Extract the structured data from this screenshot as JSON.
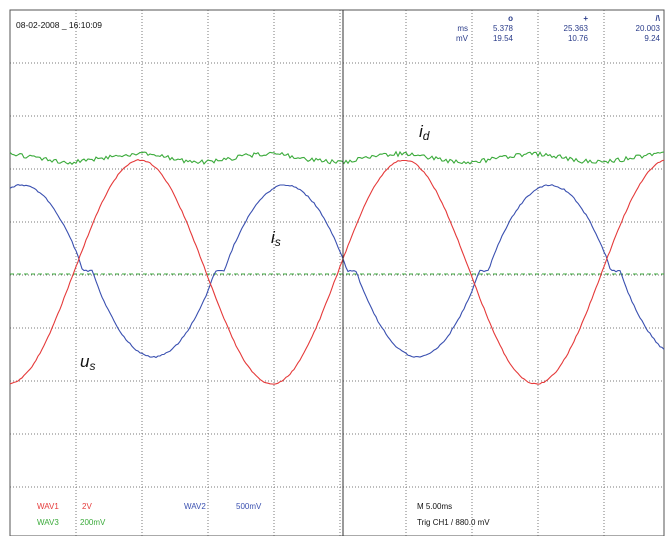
{
  "datetime": "08-02-2008 _ 16:10:09",
  "cursor_readout": {
    "units": [
      "ms",
      "mV"
    ],
    "columns": [
      {
        "marker": "o",
        "values": [
          "5.378",
          "19.54"
        ]
      },
      {
        "marker": "+",
        "values": [
          "25.363",
          "10.76"
        ]
      },
      {
        "marker": "/\\",
        "values": [
          "20.003",
          "9.24"
        ]
      }
    ]
  },
  "trace_labels": {
    "id": {
      "main": "i",
      "sub": "d"
    },
    "is": {
      "main": "i",
      "sub": "s"
    },
    "us": {
      "main": "u",
      "sub": "s"
    }
  },
  "channels": [
    {
      "name": "WAV1",
      "scale": "2V",
      "color": "#e53a3a"
    },
    {
      "name": "WAV2",
      "scale": "500mV",
      "color": "#3a50b0"
    },
    {
      "name": "WAV3",
      "scale": "200mV",
      "color": "#3aaa3a"
    }
  ],
  "timebase": "M 5.00ms",
  "trigger": "Trig CH1 / 880.0 mV",
  "colors": {
    "grid": "#7a7a7a",
    "frame": "#555555",
    "readout": "#2a3c8a"
  }
}
